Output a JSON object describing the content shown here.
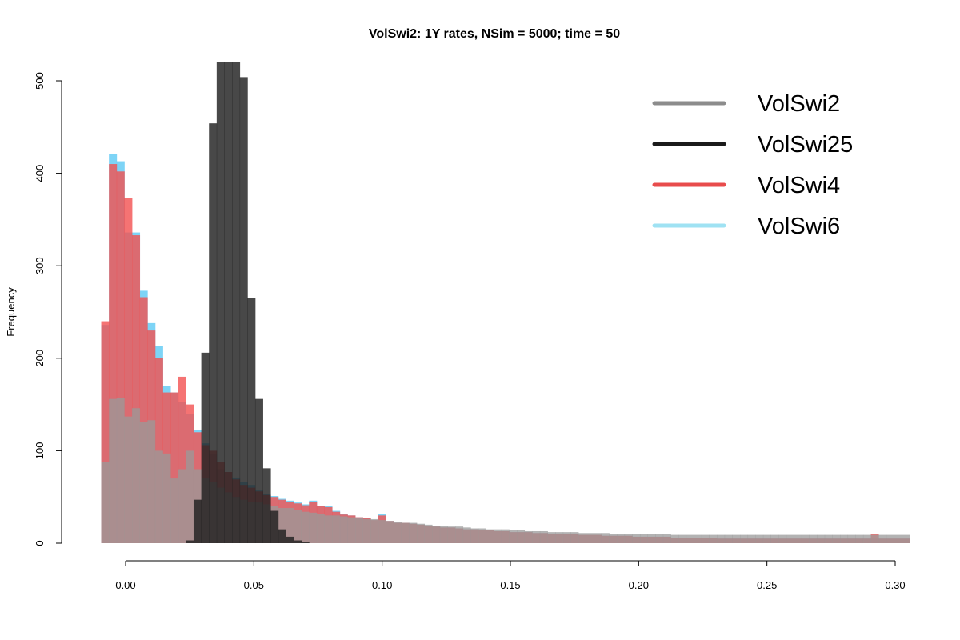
{
  "chart_data": {
    "type": "histogram",
    "title": "VolSwi2: 1Y rates, NSim = 5000; time = 50",
    "xlabel": "",
    "ylabel": "Frequency",
    "xlim": [
      -0.01,
      0.312
    ],
    "ylim": [
      0,
      520
    ],
    "x_ticks": [
      0.0,
      0.05,
      0.1,
      0.15,
      0.2,
      0.25,
      0.3
    ],
    "x_tick_labels": [
      "0.00",
      "0.05",
      "0.10",
      "0.15",
      "0.20",
      "0.25",
      "0.30"
    ],
    "y_ticks": [
      0,
      100,
      200,
      300,
      400,
      500
    ],
    "y_tick_labels": [
      "0",
      "100",
      "200",
      "300",
      "400",
      "500"
    ],
    "bin_width": 0.003,
    "bin_start": -0.0095,
    "legend_position": "top-right",
    "series": [
      {
        "name": "VolSwi6",
        "color": "#66ccf5",
        "legend_color": "#9fe2f3",
        "values": [
          236,
          421,
          413,
          336,
          336,
          273,
          238,
          213,
          170,
          163,
          153,
          140,
          122,
          108,
          96,
          80,
          77,
          71,
          66,
          63,
          57,
          53,
          51,
          48,
          46,
          44,
          42,
          46,
          40,
          40,
          35,
          32,
          30,
          28,
          27,
          25,
          32,
          24,
          22,
          22,
          21,
          20,
          19,
          18,
          17,
          17,
          16,
          15,
          15,
          14,
          14,
          13,
          13,
          12,
          12,
          12,
          11,
          11,
          10,
          10,
          10,
          10,
          9,
          9,
          9,
          8,
          8,
          8,
          8,
          7,
          7,
          7,
          7,
          7,
          6,
          6,
          6,
          6,
          6,
          6,
          5,
          5,
          5,
          5,
          5,
          5,
          5,
          5,
          5,
          5,
          5,
          5,
          5,
          5,
          5,
          5,
          5,
          5,
          5,
          5,
          5,
          5,
          5,
          5,
          5
        ]
      },
      {
        "name": "VolSwi4",
        "color": "#f25050",
        "legend_color": "#e84c4c",
        "values": [
          240,
          410,
          402,
          373,
          333,
          266,
          230,
          200,
          163,
          163,
          180,
          150,
          120,
          106,
          100,
          88,
          77,
          69,
          63,
          60,
          56,
          52,
          50,
          47,
          45,
          43,
          41,
          45,
          40,
          39,
          34,
          31,
          30,
          28,
          27,
          25,
          30,
          24,
          22,
          22,
          21,
          20,
          19,
          18,
          17,
          17,
          16,
          15,
          15,
          14,
          14,
          13,
          13,
          12,
          12,
          12,
          11,
          11,
          10,
          10,
          10,
          10,
          9,
          9,
          9,
          8,
          8,
          8,
          8,
          7,
          7,
          7,
          7,
          7,
          6,
          6,
          6,
          6,
          6,
          6,
          5,
          5,
          5,
          5,
          5,
          5,
          5,
          5,
          5,
          5,
          5,
          5,
          5,
          5,
          5,
          5,
          5,
          5,
          5,
          5,
          10,
          5,
          5,
          5,
          5
        ]
      },
      {
        "name": "VolSwi2",
        "color": "#9a9a9a",
        "legend_color": "#8c8c8c",
        "values": [
          88,
          156,
          157,
          137,
          146,
          131,
          133,
          100,
          97,
          70,
          80,
          100,
          80,
          70,
          66,
          60,
          55,
          50,
          47,
          45,
          44,
          42,
          40,
          38,
          38,
          36,
          34,
          33,
          32,
          30,
          30,
          29,
          28,
          27,
          26,
          26,
          25,
          24,
          23,
          22,
          22,
          21,
          20,
          19,
          19,
          18,
          18,
          17,
          16,
          16,
          15,
          15,
          15,
          14,
          14,
          13,
          13,
          13,
          12,
          12,
          12,
          12,
          11,
          11,
          11,
          11,
          10,
          10,
          10,
          10,
          10,
          10,
          10,
          10,
          9,
          9,
          9,
          9,
          9,
          9,
          9,
          9,
          9,
          9,
          9,
          9,
          9,
          9,
          9,
          9,
          9,
          9,
          9,
          9,
          9,
          9,
          9,
          9,
          9,
          9,
          9,
          9,
          9,
          9,
          9
        ]
      },
      {
        "name": "VolSwi25",
        "color": "#202020",
        "legend_color": "#1a1a1a",
        "values": [
          0,
          0,
          0,
          0,
          0,
          0,
          0,
          0,
          0,
          0,
          0,
          3,
          47,
          206,
          454,
          520,
          520,
          520,
          504,
          265,
          156,
          81,
          35,
          15,
          7,
          3,
          1,
          0,
          0,
          0,
          0,
          0,
          0,
          0,
          0,
          0,
          0,
          0,
          0,
          0,
          0,
          0,
          0,
          0,
          0,
          0,
          0,
          0,
          0,
          0,
          0,
          0,
          0,
          0,
          0,
          0,
          0,
          0,
          0,
          0,
          0,
          0,
          0,
          0,
          0,
          0,
          0,
          0,
          0,
          0,
          0,
          0,
          0,
          0,
          0,
          0,
          0,
          0,
          0,
          0,
          0,
          0,
          0,
          0,
          0,
          0,
          0,
          0,
          0,
          0,
          0,
          0,
          0,
          0,
          0,
          0,
          0,
          0,
          0,
          0,
          0,
          0,
          0,
          0,
          0
        ]
      }
    ],
    "legend_order": [
      "VolSwi2",
      "VolSwi25",
      "VolSwi4",
      "VolSwi6"
    ]
  }
}
